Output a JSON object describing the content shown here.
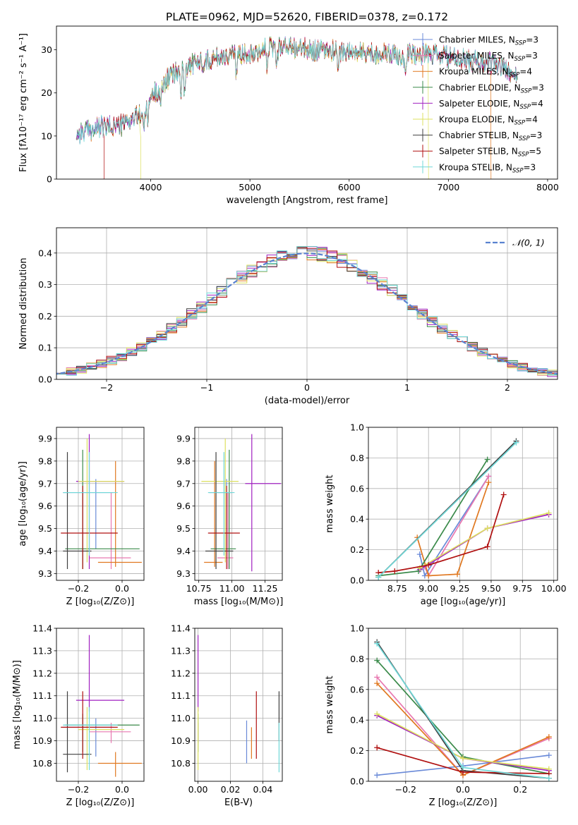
{
  "title": "PLATE=0962, MJD=52620, FIBERID=0378, z=0.172",
  "models": [
    {
      "label": "Chabrier MILES, N",
      "sub": "SSP",
      "eq": "=3",
      "color": "#6a8ad8"
    },
    {
      "label": "Salpeter MILES, N",
      "sub": "SSP",
      "eq": "=3",
      "color": "#e878b0"
    },
    {
      "label": "Kroupa MILES, N",
      "sub": "SSP",
      "eq": "=4",
      "color": "#e07820"
    },
    {
      "label": "Chabrier ELODIE, N",
      "sub": "SSP",
      "eq": "=3",
      "color": "#3a8a4a"
    },
    {
      "label": "Salpeter ELODIE, N",
      "sub": "SSP",
      "eq": "=4",
      "color": "#a020c0"
    },
    {
      "label": "Kroupa ELODIE, N",
      "sub": "SSP",
      "eq": "=4",
      "color": "#dde060"
    },
    {
      "label": "Chabrier STELIB, N",
      "sub": "SSP",
      "eq": "=3",
      "color": "#404040"
    },
    {
      "label": "Salpeter STELIB, N",
      "sub": "SSP",
      "eq": "=5",
      "color": "#b01010"
    },
    {
      "label": "Kroupa STELIB, N",
      "sub": "SSP",
      "eq": "=3",
      "color": "#70d8d8"
    }
  ],
  "chart_data": [
    {
      "id": "spectrum",
      "type": "line",
      "xlabel": "wavelength [Angstrom, rest frame]",
      "ylabel": "Flux [fλ10⁻¹⁷ erg cm⁻² s⁻¹ A⁻¹]",
      "xlim": [
        3050,
        8100
      ],
      "ylim": [
        0,
        35.5
      ],
      "xticks": [
        4000,
        5000,
        6000,
        7000,
        8000
      ],
      "yticks": [
        0,
        10,
        20,
        30
      ],
      "continuum": {
        "x": [
          3250,
          3500,
          3700,
          3900,
          4000,
          4200,
          4400,
          4700,
          5000,
          5300,
          5600,
          6000,
          6400,
          6800,
          7200,
          7500,
          7700
        ],
        "y": [
          10.5,
          12,
          12.5,
          15,
          19,
          24,
          26.5,
          28.5,
          29.5,
          31,
          30,
          29.5,
          29,
          29,
          27.5,
          26.5,
          24
        ]
      },
      "drop_edges": [
        {
          "model": 7,
          "x": 3530,
          "side": "left"
        },
        {
          "model": 5,
          "x": 3900,
          "side": "left"
        },
        {
          "model": 5,
          "x": 6800,
          "side": "right"
        },
        {
          "model": 2,
          "x": 7430,
          "side": "right"
        }
      ]
    },
    {
      "id": "residuals",
      "type": "histogram",
      "xlabel": "(data-model)/error",
      "ylabel": "Normed distribution",
      "xlim": [
        -2.5,
        2.5
      ],
      "ylim": [
        0,
        0.48
      ],
      "xticks": [
        -2,
        -1,
        0,
        1,
        2
      ],
      "yticks": [
        0.0,
        0.1,
        0.2,
        0.3,
        0.4
      ],
      "legend": "𝒩(0, 1)",
      "legend_position": "top-right",
      "gaussian": {
        "mean": 0,
        "sigma": 1,
        "color": "#5a82d0"
      },
      "bin_width": 0.1
    },
    {
      "id": "age-vs-Z",
      "type": "errorbar",
      "xlabel": "Z [log₁₀(Z/Z⊙)]",
      "ylabel": "age  [log₁₀(age/yr)]",
      "xlim": [
        -0.3,
        0.1
      ],
      "ylim": [
        9.27,
        9.95
      ],
      "xticks": [
        -0.2,
        0.0
      ],
      "xticklabels": [
        "−0.2",
        "0.0"
      ],
      "yticks": [
        9.3,
        9.4,
        9.5,
        9.6,
        9.7,
        9.8,
        9.9
      ],
      "points": [
        {
          "model": 0,
          "x": -0.12,
          "xerr": [
            0.15,
            0.08
          ],
          "y": 9.66,
          "yerr": [
            0.25,
            0.06
          ]
        },
        {
          "model": 1,
          "x": -0.05,
          "xerr": [
            0.1,
            0.09
          ],
          "y": 9.37,
          "yerr": [
            0.05,
            0.29
          ]
        },
        {
          "model": 2,
          "x": -0.03,
          "xerr": [
            0.08,
            0.12
          ],
          "y": 9.35,
          "yerr": [
            0.02,
            0.45
          ]
        },
        {
          "model": 3,
          "x": -0.18,
          "xerr": [
            0.08,
            0.26
          ],
          "y": 9.41,
          "yerr": [
            0.09,
            0.44
          ]
        },
        {
          "model": 4,
          "x": -0.15,
          "xerr": [
            0.06,
            0.16
          ],
          "y": 9.71,
          "yerr": [
            0.39,
            0.21
          ]
        },
        {
          "model": 5,
          "x": -0.16,
          "xerr": [
            0.04,
            0.17
          ],
          "y": 9.71,
          "yerr": [
            0.36,
            0.19
          ]
        },
        {
          "model": 6,
          "x": -0.25,
          "xerr": [
            0.02,
            0.11
          ],
          "y": 9.4,
          "yerr": [
            0.08,
            0.44
          ]
        },
        {
          "model": 7,
          "x": -0.18,
          "xerr": [
            0.1,
            0.16
          ],
          "y": 9.48,
          "yerr": [
            0.16,
            0.21
          ]
        },
        {
          "model": 8,
          "x": -0.15,
          "xerr": [
            0.12,
            0.13
          ],
          "y": 9.66,
          "yerr": [
            0.28,
            0.18
          ]
        }
      ]
    },
    {
      "id": "age-vs-mass",
      "type": "errorbar",
      "xlabel": "mass [log₁₀(M/M⊙)]",
      "xlim": [
        10.72,
        11.38
      ],
      "ylim": [
        9.27,
        9.95
      ],
      "xticks": [
        10.75,
        11.0,
        11.25
      ],
      "xticklabels": [
        "10.75",
        "11.00",
        "11.25"
      ],
      "yticks": [
        9.3,
        9.4,
        9.5,
        9.6,
        9.7,
        9.8,
        9.9
      ],
      "points": [
        {
          "model": 0,
          "x": 10.96,
          "xerr": [
            0.13,
            0.04
          ],
          "y": 9.66,
          "yerr": [
            0.25,
            0.06
          ]
        },
        {
          "model": 1,
          "x": 10.97,
          "xerr": [
            0.08,
            0.04
          ],
          "y": 9.37,
          "yerr": [
            0.05,
            0.29
          ]
        },
        {
          "model": 2,
          "x": 10.87,
          "xerr": [
            0.08,
            0.06
          ],
          "y": 9.35,
          "yerr": [
            0.02,
            0.45
          ]
        },
        {
          "model": 3,
          "x": 10.98,
          "xerr": [
            0.14,
            0.05
          ],
          "y": 9.41,
          "yerr": [
            0.09,
            0.44
          ]
        },
        {
          "model": 4,
          "x": 11.15,
          "xerr": [
            0.05,
            0.22
          ],
          "y": 9.7,
          "yerr": [
            0.39,
            0.22
          ]
        },
        {
          "model": 5,
          "x": 10.95,
          "xerr": [
            0.18,
            0.1
          ],
          "y": 9.71,
          "yerr": [
            0.36,
            0.19
          ]
        },
        {
          "model": 6,
          "x": 10.88,
          "xerr": [
            0.08,
            0.13
          ],
          "y": 9.4,
          "yerr": [
            0.08,
            0.44
          ]
        },
        {
          "model": 7,
          "x": 10.96,
          "xerr": [
            0.14,
            0.1
          ],
          "y": 9.48,
          "yerr": [
            0.16,
            0.21
          ]
        },
        {
          "model": 8,
          "x": 10.94,
          "xerr": [
            0.12,
            0.08
          ],
          "y": 9.66,
          "yerr": [
            0.28,
            0.18
          ]
        }
      ]
    },
    {
      "id": "weight-vs-age",
      "type": "line",
      "xlabel": "age  [log₁₀(age/yr)]",
      "ylabel": "mass weight",
      "xlim": [
        8.52,
        10.03
      ],
      "ylim": [
        0,
        1
      ],
      "xticks": [
        8.75,
        9.0,
        9.25,
        9.5,
        9.75,
        10.0
      ],
      "xticklabels": [
        "8.75",
        "9.00",
        "9.25",
        "9.50",
        "9.75",
        "10.00"
      ],
      "yticks": [
        0,
        0.2,
        0.4,
        0.6,
        0.8,
        1.0
      ],
      "yticklabels": [
        "0.0",
        "0.2",
        "0.4",
        "0.6",
        "0.8",
        "1.0"
      ],
      "series": [
        {
          "model": 0,
          "x": [
            8.93,
            8.97,
            9.48
          ],
          "y": [
            0.17,
            0.03,
            0.68
          ]
        },
        {
          "model": 1,
          "x": [
            8.97,
            9.0,
            9.48
          ],
          "y": [
            0.09,
            0.03,
            0.68
          ]
        },
        {
          "model": 2,
          "x": [
            8.91,
            9.0,
            9.23,
            9.48
          ],
          "y": [
            0.28,
            0.03,
            0.04,
            0.64
          ]
        },
        {
          "model": 3,
          "x": [
            8.6,
            8.92,
            9.47
          ],
          "y": [
            0.03,
            0.06,
            0.79
          ]
        },
        {
          "model": 4,
          "x": [
            8.93,
            9.47,
            9.96
          ],
          "y": [
            0.07,
            0.34,
            0.43
          ]
        },
        {
          "model": 5,
          "x": [
            8.93,
            9.47,
            9.96
          ],
          "y": [
            0.08,
            0.34,
            0.44
          ]
        },
        {
          "model": 6,
          "x": [
            8.6,
            9.7
          ],
          "y": [
            0.02,
            0.91
          ]
        },
        {
          "model": 7,
          "x": [
            8.6,
            8.73,
            9.0,
            9.47,
            9.6
          ],
          "y": [
            0.05,
            0.06,
            0.1,
            0.22,
            0.56
          ]
        },
        {
          "model": 8,
          "x": [
            8.6,
            9.7
          ],
          "y": [
            0.02,
            0.9
          ]
        }
      ]
    },
    {
      "id": "mass-vs-Z",
      "type": "errorbar",
      "xlabel": "Z [log₁₀(Z/Z⊙)]",
      "ylabel": "mass [log₁₀(M/M⊙)]",
      "xlim": [
        -0.3,
        0.1
      ],
      "ylim": [
        10.72,
        11.4
      ],
      "xticks": [
        -0.2,
        0.0
      ],
      "xticklabels": [
        "−0.2",
        "0.0"
      ],
      "yticks": [
        10.8,
        10.9,
        11.0,
        11.1,
        11.2,
        11.3,
        11.4
      ],
      "points": [
        {
          "model": 0,
          "x": -0.12,
          "xerr": [
            0.15,
            0.08
          ],
          "y": 10.96,
          "yerr": [
            0.13,
            0.04
          ]
        },
        {
          "model": 1,
          "x": -0.05,
          "xerr": [
            0.1,
            0.09
          ],
          "y": 10.94,
          "yerr": [
            0.05,
            0.04
          ]
        },
        {
          "model": 2,
          "x": -0.03,
          "xerr": [
            0.08,
            0.12
          ],
          "y": 10.8,
          "yerr": [
            0.06,
            0.05
          ]
        },
        {
          "model": 3,
          "x": -0.18,
          "xerr": [
            0.08,
            0.26
          ],
          "y": 10.97,
          "yerr": [
            0.12,
            0.05
          ]
        },
        {
          "model": 4,
          "x": -0.15,
          "xerr": [
            0.06,
            0.16
          ],
          "y": 11.08,
          "yerr": [
            0.05,
            0.29
          ]
        },
        {
          "model": 5,
          "x": -0.16,
          "xerr": [
            0.04,
            0.17
          ],
          "y": 10.95,
          "yerr": [
            0.18,
            0.1
          ]
        },
        {
          "model": 6,
          "x": -0.25,
          "xerr": [
            0.02,
            0.11
          ],
          "y": 10.84,
          "yerr": [
            0.08,
            0.28
          ]
        },
        {
          "model": 7,
          "x": -0.18,
          "xerr": [
            0.1,
            0.16
          ],
          "y": 10.96,
          "yerr": [
            0.14,
            0.16
          ]
        },
        {
          "model": 8,
          "x": -0.15,
          "xerr": [
            0.12,
            0.13
          ],
          "y": 10.97,
          "yerr": [
            0.2,
            0.08
          ]
        }
      ]
    },
    {
      "id": "mass-vs-ebv",
      "type": "errorbar",
      "xlabel": "E(B-V)",
      "xlim": [
        -0.002,
        0.052
      ],
      "ylim": [
        10.72,
        11.4
      ],
      "xticks": [
        0.0,
        0.02,
        0.04
      ],
      "xticklabels": [
        "0.00",
        "0.02",
        "0.04"
      ],
      "yticks": [
        10.8,
        10.9,
        11.0,
        11.1,
        11.2,
        11.3,
        11.4
      ],
      "points": [
        {
          "model": 0,
          "x": 0.03,
          "y": 10.9,
          "yerr": [
            0.1,
            0.09
          ]
        },
        {
          "model": 1,
          "x": 0.0,
          "y": 10.94,
          "yerr": [
            0.05,
            0.04
          ]
        },
        {
          "model": 2,
          "x": 0.033,
          "y": 10.9,
          "yerr": [
            0.08,
            0.06
          ]
        },
        {
          "model": 3,
          "x": 0.0,
          "y": 10.97,
          "yerr": [
            0.12,
            0.05
          ]
        },
        {
          "model": 4,
          "x": 0.0,
          "y": 11.08,
          "yerr": [
            0.05,
            0.29
          ]
        },
        {
          "model": 5,
          "x": 0.0,
          "y": 10.95,
          "yerr": [
            0.18,
            0.1
          ]
        },
        {
          "model": 6,
          "x": 0.05,
          "y": 10.95,
          "yerr": [
            0.05,
            0.17
          ]
        },
        {
          "model": 7,
          "x": 0.036,
          "y": 10.96,
          "yerr": [
            0.14,
            0.16
          ]
        },
        {
          "model": 8,
          "x": 0.05,
          "y": 10.9,
          "yerr": [
            0.14,
            0.08
          ]
        }
      ]
    },
    {
      "id": "weight-vs-Z",
      "type": "line",
      "xlabel": "Z [log₁₀(Z/Z⊙)]",
      "ylabel": "mass weight",
      "xlim": [
        -0.33,
        0.33
      ],
      "ylim": [
        0,
        1
      ],
      "xticks": [
        -0.2,
        0.0,
        0.2
      ],
      "xticklabels": [
        "−0.2",
        "0.0",
        "0.2"
      ],
      "yticks": [
        0,
        0.2,
        0.4,
        0.6,
        0.8,
        1.0
      ],
      "yticklabels": [
        "0.0",
        "0.2",
        "0.4",
        "0.6",
        "0.8",
        "1.0"
      ],
      "series": [
        {
          "model": 0,
          "x": [
            -0.3,
            0.0,
            0.3
          ],
          "y": [
            0.04,
            0.1,
            0.17
          ]
        },
        {
          "model": 1,
          "x": [
            -0.3,
            0.0,
            0.3
          ],
          "y": [
            0.68,
            0.04,
            0.28
          ]
        },
        {
          "model": 2,
          "x": [
            -0.3,
            0.0,
            0.3
          ],
          "y": [
            0.64,
            0.04,
            0.29
          ]
        },
        {
          "model": 3,
          "x": [
            -0.3,
            0.0,
            0.3
          ],
          "y": [
            0.79,
            0.16,
            0.05
          ]
        },
        {
          "model": 4,
          "x": [
            -0.3,
            0.0,
            0.3
          ],
          "y": [
            0.43,
            0.15,
            0.07
          ]
        },
        {
          "model": 5,
          "x": [
            -0.3,
            0.0,
            0.3
          ],
          "y": [
            0.44,
            0.15,
            0.08
          ]
        },
        {
          "model": 6,
          "x": [
            -0.3,
            0.0,
            0.3
          ],
          "y": [
            0.91,
            0.07,
            0.02
          ]
        },
        {
          "model": 7,
          "x": [
            -0.3,
            0.0,
            0.3
          ],
          "y": [
            0.22,
            0.06,
            0.05
          ]
        },
        {
          "model": 8,
          "x": [
            -0.3,
            0.0,
            0.3
          ],
          "y": [
            0.9,
            0.09,
            0.02
          ]
        }
      ]
    }
  ]
}
